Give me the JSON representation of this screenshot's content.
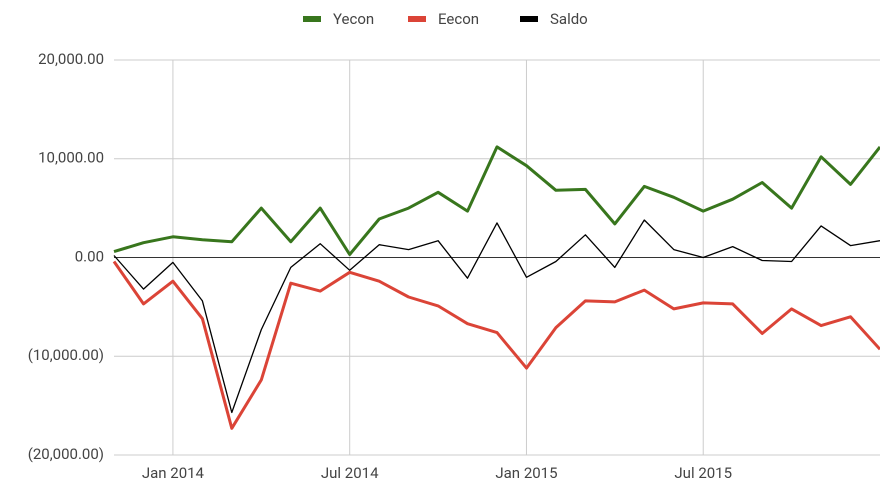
{
  "chart_data": {
    "type": "line",
    "x": [
      "2013-11",
      "2013-12",
      "2014-01",
      "2014-02",
      "2014-03",
      "2014-04",
      "2014-05",
      "2014-06",
      "2014-07",
      "2014-08",
      "2014-09",
      "2014-10",
      "2014-11",
      "2014-12",
      "2015-01",
      "2015-02",
      "2015-03",
      "2015-04",
      "2015-05",
      "2015-06",
      "2015-07",
      "2015-08",
      "2015-09",
      "2015-10",
      "2015-11",
      "2015-12",
      "2016-01"
    ],
    "series": [
      {
        "name": "Yecon",
        "color": "#38761d",
        "values": [
          600,
          1500,
          2100,
          1800,
          1600,
          5000,
          1600,
          5000,
          300,
          3900,
          5000,
          6600,
          4700,
          11200,
          9300,
          6800,
          6900,
          3400,
          7200,
          6100,
          4700,
          5900,
          7600,
          5000,
          10200,
          7400,
          11200
        ]
      },
      {
        "name": "Eecon",
        "color": "#db4437",
        "values": [
          -400,
          -4700,
          -2400,
          -6200,
          -17300,
          -12400,
          -2600,
          -3400,
          -1500,
          -2400,
          -4000,
          -4900,
          -6700,
          -7600,
          -11200,
          -7100,
          -4400,
          -4500,
          -3300,
          -5200,
          -4600,
          -4700,
          -7700,
          -5200,
          -6900,
          -6000,
          -9300
        ]
      },
      {
        "name": "Saldo",
        "color": "#000000",
        "values": [
          200,
          -3200,
          -500,
          -4400,
          -15700,
          -7300,
          -1000,
          1400,
          -1300,
          1300,
          800,
          1700,
          -2100,
          3500,
          -2000,
          -400,
          2300,
          -1000,
          3800,
          800,
          0,
          1100,
          -300,
          -400,
          3200,
          1200,
          1700
        ]
      }
    ],
    "xlim": [
      "2013-11",
      "2016-01"
    ],
    "xticks": [
      {
        "value": "2014-01",
        "label": "Jan 2014"
      },
      {
        "value": "2014-07",
        "label": "Jul 2014"
      },
      {
        "value": "2015-01",
        "label": "Jan 2015"
      },
      {
        "value": "2015-07",
        "label": "Jul 2015"
      }
    ],
    "ylim": [
      -20000,
      20000
    ],
    "yticks": [
      {
        "value": -20000,
        "label": "(20,000.00)"
      },
      {
        "value": -10000,
        "label": "(10,000.00)"
      },
      {
        "value": 0,
        "label": "0.00"
      },
      {
        "value": 10000,
        "label": "10,000.00"
      },
      {
        "value": 20000,
        "label": "20,000.00"
      }
    ],
    "grid": true,
    "legend": "top"
  }
}
